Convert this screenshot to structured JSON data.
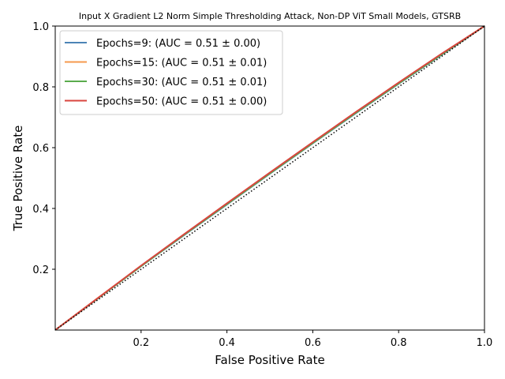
{
  "chart_data": {
    "type": "line",
    "title": "Input X Gradient L2 Norm Simple Thresholding Attack, Non-DP ViT Small Models, GTSRB",
    "xlabel": "False Positive Rate",
    "ylabel": "True Positive Rate",
    "xlim": [
      0,
      1
    ],
    "ylim": [
      0,
      1
    ],
    "xticks": [
      "0.2",
      "0.4",
      "0.6",
      "0.8",
      "1.0"
    ],
    "yticks": [
      "0.2",
      "0.4",
      "0.6",
      "0.8",
      "1.0"
    ],
    "legend_position": "upper-left",
    "grid": false,
    "series": [
      {
        "name": "Epochs=9: (AUC = 0.51 ± 0.00)",
        "color": "#4c84b6",
        "x": [
          0,
          0.1,
          0.2,
          0.3,
          0.4,
          0.5,
          0.6,
          0.7,
          0.8,
          0.9,
          1.0
        ],
        "y": [
          0,
          0.105,
          0.21,
          0.312,
          0.413,
          0.514,
          0.614,
          0.713,
          0.81,
          0.905,
          1.0
        ]
      },
      {
        "name": "Epochs=15: (AUC = 0.51 ± 0.01)",
        "color": "#f59a4d",
        "x": [
          0,
          0.1,
          0.2,
          0.3,
          0.4,
          0.5,
          0.6,
          0.7,
          0.8,
          0.9,
          1.0
        ],
        "y": [
          0,
          0.106,
          0.211,
          0.314,
          0.416,
          0.517,
          0.617,
          0.716,
          0.813,
          0.908,
          1.0
        ]
      },
      {
        "name": "Epochs=30: (AUC = 0.51 ± 0.01)",
        "color": "#5aab4d",
        "x": [
          0,
          0.1,
          0.2,
          0.3,
          0.4,
          0.5,
          0.6,
          0.7,
          0.8,
          0.9,
          1.0
        ],
        "y": [
          0,
          0.105,
          0.21,
          0.313,
          0.414,
          0.515,
          0.615,
          0.714,
          0.811,
          0.906,
          1.0
        ]
      },
      {
        "name": "Epochs=50: (AUC = 0.51 ± 0.00)",
        "color": "#d9453e",
        "x": [
          0,
          0.1,
          0.2,
          0.3,
          0.4,
          0.5,
          0.6,
          0.7,
          0.8,
          0.9,
          1.0
        ],
        "y": [
          0,
          0.106,
          0.212,
          0.315,
          0.417,
          0.518,
          0.618,
          0.717,
          0.814,
          0.909,
          1.0
        ]
      }
    ],
    "reference_line": {
      "x": [
        0,
        1
      ],
      "y": [
        0,
        1
      ],
      "style": "dotted",
      "color": "#000000"
    }
  }
}
